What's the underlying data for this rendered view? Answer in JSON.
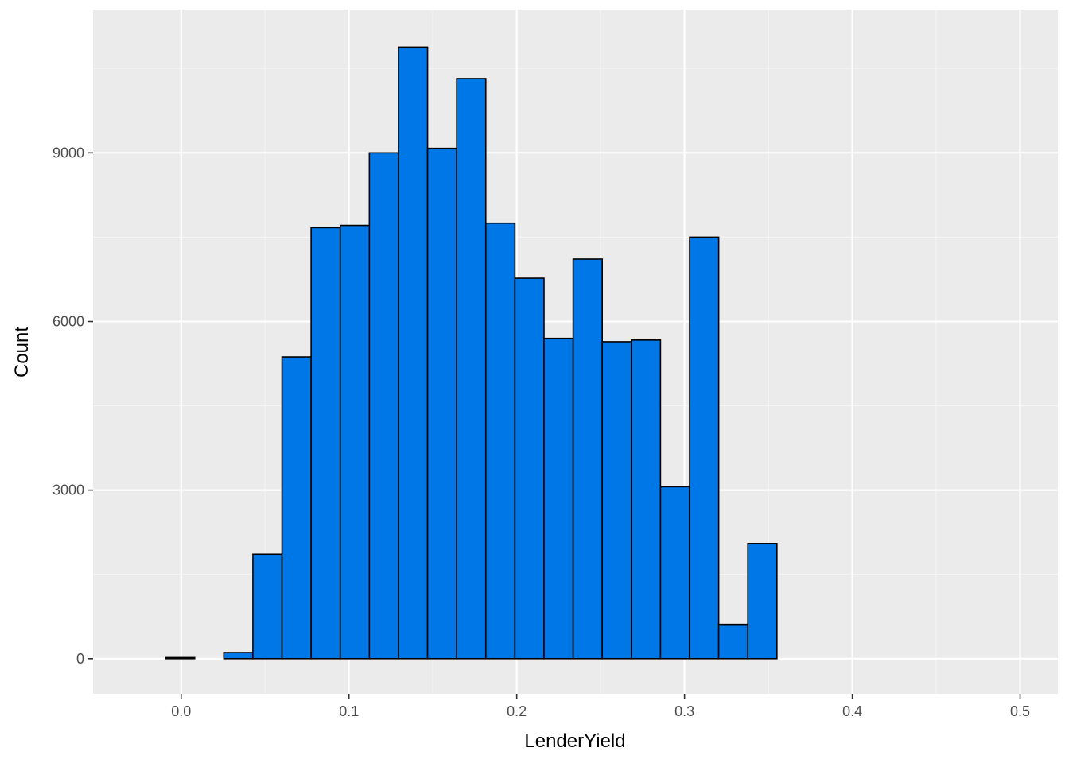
{
  "colors": {
    "panel_background": "#EBEBEB",
    "grid_major": "#FFFFFF",
    "grid_minor": "#F5F5F5",
    "bar_fill": "#0077E6",
    "bar_outline": "#000000",
    "tick_text": "#4D4D4D",
    "title_text": "#000000"
  },
  "chart_data": {
    "type": "bar",
    "xlabel": "LenderYield",
    "ylabel": "Count",
    "xlim": [
      -0.0525,
      0.5225
    ],
    "ylim": [
      -625,
      11550
    ],
    "grid": true,
    "legend": "none",
    "x_ticks": [
      0.0,
      0.1,
      0.2,
      0.3,
      0.4,
      0.5
    ],
    "x_tick_labels": [
      "0.0",
      "0.1",
      "0.2",
      "0.3",
      "0.4",
      "0.5"
    ],
    "y_ticks": [
      0,
      3000,
      6000,
      9000
    ],
    "y_tick_labels": [
      "0",
      "3000",
      "6000",
      "9000"
    ],
    "bin_width": 0.01735,
    "bins": [
      {
        "x0": -0.02666,
        "x1": -0.00931,
        "count": 0
      },
      {
        "x0": -0.00931,
        "x1": 0.00804,
        "count": 20
      },
      {
        "x0": 0.00804,
        "x1": 0.0254,
        "count": 0
      },
      {
        "x0": 0.0254,
        "x1": 0.04275,
        "count": 110
      },
      {
        "x0": 0.04275,
        "x1": 0.0601,
        "count": 1860
      },
      {
        "x0": 0.0601,
        "x1": 0.07745,
        "count": 5370
      },
      {
        "x0": 0.07745,
        "x1": 0.0948,
        "count": 7670
      },
      {
        "x0": 0.0948,
        "x1": 0.11216,
        "count": 7710
      },
      {
        "x0": 0.11216,
        "x1": 0.12951,
        "count": 9000
      },
      {
        "x0": 0.12951,
        "x1": 0.14686,
        "count": 10880
      },
      {
        "x0": 0.14686,
        "x1": 0.16421,
        "count": 9080
      },
      {
        "x0": 0.16421,
        "x1": 0.18156,
        "count": 10320
      },
      {
        "x0": 0.18156,
        "x1": 0.19892,
        "count": 7750
      },
      {
        "x0": 0.19892,
        "x1": 0.21627,
        "count": 6770
      },
      {
        "x0": 0.21627,
        "x1": 0.23362,
        "count": 5700
      },
      {
        "x0": 0.23362,
        "x1": 0.25097,
        "count": 7110
      },
      {
        "x0": 0.25097,
        "x1": 0.26832,
        "count": 5640
      },
      {
        "x0": 0.26832,
        "x1": 0.28568,
        "count": 5670
      },
      {
        "x0": 0.28568,
        "x1": 0.30303,
        "count": 3060
      },
      {
        "x0": 0.30303,
        "x1": 0.32038,
        "count": 7500
      },
      {
        "x0": 0.32038,
        "x1": 0.33773,
        "count": 610
      },
      {
        "x0": 0.33773,
        "x1": 0.35508,
        "count": 2050
      },
      {
        "x0": 0.35508,
        "x1": 0.37244,
        "count": 0
      },
      {
        "x0": 0.37244,
        "x1": 0.38979,
        "count": 0
      },
      {
        "x0": 0.38979,
        "x1": 0.40714,
        "count": 0
      },
      {
        "x0": 0.40714,
        "x1": 0.42449,
        "count": 0
      },
      {
        "x0": 0.42449,
        "x1": 0.44184,
        "count": 0
      },
      {
        "x0": 0.44184,
        "x1": 0.4592,
        "count": 0
      },
      {
        "x0": 0.4592,
        "x1": 0.47655,
        "count": 0
      },
      {
        "x0": 0.47655,
        "x1": 0.4939,
        "count": 0
      }
    ]
  }
}
